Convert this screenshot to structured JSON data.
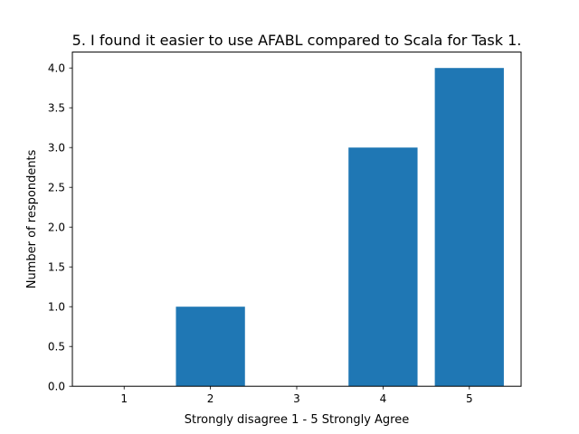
{
  "chart_data": {
    "type": "bar",
    "title": "5. I found it easier to use AFABL compared to Scala for Task 1.",
    "xlabel": "Strongly disagree 1 - 5  Strongly Agree",
    "ylabel": "Number of respondents",
    "categories": [
      "1",
      "2",
      "3",
      "4",
      "5"
    ],
    "values": [
      0,
      1,
      0,
      3,
      4
    ],
    "xlim": [
      0.4,
      5.6
    ],
    "ylim": [
      0,
      4.2
    ],
    "yticks": [
      "0.0",
      "0.5",
      "1.0",
      "1.5",
      "2.0",
      "2.5",
      "3.0",
      "3.5",
      "4.0"
    ],
    "bar_color": "#1f77b4",
    "grid": false,
    "legend": "none"
  }
}
